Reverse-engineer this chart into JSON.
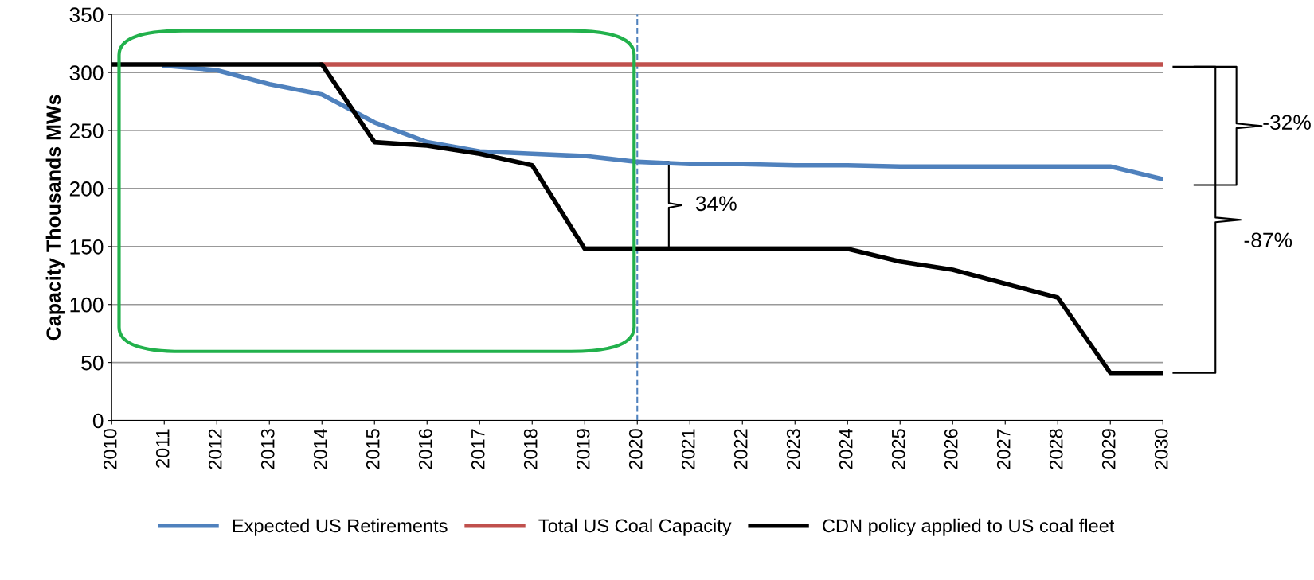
{
  "chart_data": {
    "type": "line",
    "ylabel": "Capacity Thousands MWs",
    "x": [
      2010,
      2011,
      2012,
      2013,
      2014,
      2015,
      2016,
      2017,
      2018,
      2019,
      2020,
      2021,
      2022,
      2023,
      2024,
      2025,
      2026,
      2027,
      2028,
      2029,
      2030
    ],
    "series": [
      {
        "name": "Expected US Retirements",
        "color": "#4f81bd",
        "values": [
          null,
          306,
          302,
          290,
          281,
          257,
          240,
          232,
          230,
          228,
          223,
          221,
          221,
          220,
          220,
          219,
          219,
          219,
          219,
          219,
          208
        ]
      },
      {
        "name": "Total US Coal Capacity",
        "color": "#c0504d",
        "values": [
          null,
          null,
          null,
          null,
          307,
          307,
          307,
          307,
          307,
          307,
          307,
          307,
          307,
          307,
          307,
          307,
          307,
          307,
          307,
          307,
          307
        ]
      },
      {
        "name": "CDN policy applied to US coal fleet",
        "color": "#000000",
        "values": [
          307,
          307,
          307,
          307,
          307,
          240,
          237,
          230,
          220,
          148,
          148,
          148,
          148,
          148,
          148,
          137,
          130,
          118,
          106,
          41,
          41
        ]
      }
    ],
    "xlim": [
      2010,
      2030
    ],
    "xticks": [
      2010,
      2011,
      2012,
      2013,
      2014,
      2015,
      2016,
      2017,
      2018,
      2019,
      2020,
      2021,
      2022,
      2023,
      2024,
      2025,
      2026,
      2027,
      2028,
      2029,
      2030
    ],
    "ylim": [
      0,
      350
    ],
    "yticks": [
      0,
      50,
      100,
      150,
      200,
      250,
      300,
      350
    ],
    "grid": "y",
    "legend": "bottom",
    "marker": "none",
    "line_style": "solid",
    "ref_lines": [
      {
        "axis": "x",
        "value": 2020,
        "color": "#4f81bd",
        "line_style": "dashed"
      }
    ],
    "annotations": [
      "34%",
      "-32%",
      "-87%"
    ]
  }
}
